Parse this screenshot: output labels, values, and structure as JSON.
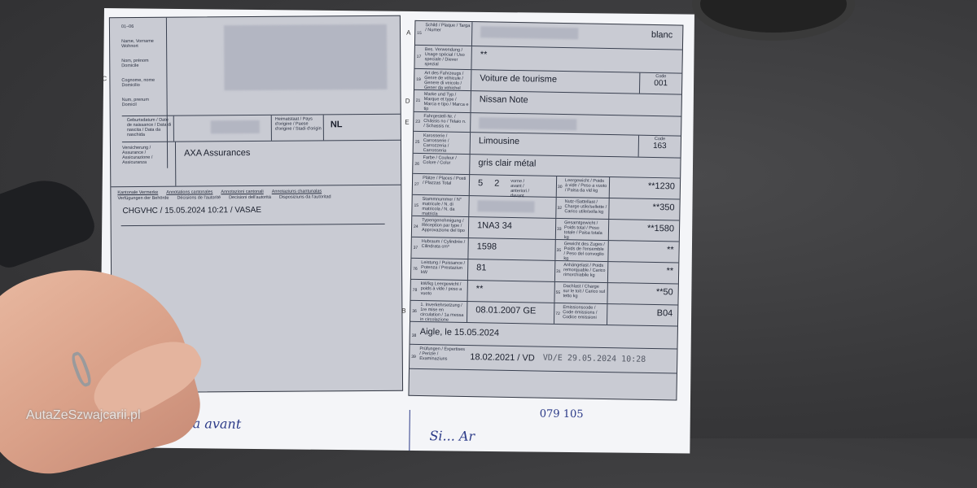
{
  "watermark": "AutaZeSzwajcarii.pl",
  "left": {
    "section_c": "C",
    "field_01": "01–06",
    "holder_labels": [
      "Name, Vorname Wohnort",
      "Nom, prénom Domicile",
      "Cognome, nome Domicilio",
      "Num, prenum Domicil"
    ],
    "field_07_label": "Geburtsdatum / Date de naissance / Data di nascita / Data da naschida",
    "field_08_label": "Heimatstaat / Pays d'origine / Paese d'origine / Stadi d'origin",
    "origin": "NL",
    "field_09_label": "Versicherung / Assurance / Assicurazione / Assicuranza",
    "insurance": "AXA Assurances",
    "field_13_labels": [
      "Kantonale Vermerke",
      "Annotations cantonales",
      "Annotazioni cantonali",
      "Annotaziuns chantunalas"
    ],
    "field_14_labels": [
      "Verfügungen der Behörde",
      "Décisions de l'autorité",
      "Decisioni dell'autorità",
      "Disposiziuns da l'autoritad"
    ],
    "annotation": "CHGVHC / 15.05.2024 10:21 / VASAE"
  },
  "right": {
    "rows": [
      {
        "side": "A",
        "num": "15",
        "label": "Schild / Plaque / Targa / Numer",
        "value": "",
        "extra": "blanc"
      },
      {
        "num": "17",
        "label": "Bes. Verwendung / Usage spécial / Uso speciale / Diever spezial",
        "value": "**"
      },
      {
        "num": "19",
        "label": "Art des Fahrzeugs / Genre de véhicule / Genere di veicolo / Gener da vehichel",
        "value": "Voiture de tourisme",
        "code_label": "Code",
        "code": "001"
      },
      {
        "side": "D",
        "num": "21",
        "label": "Marke und Typ / Marque et type / Marca e tipo / Marca e tip",
        "value": "Nissan Note"
      },
      {
        "side": "E",
        "num": "23",
        "label": "Fahrgestell-Nr. / Châssis no / Telaio n. / Schassis nr.",
        "value": ""
      },
      {
        "num": "25",
        "label": "Karosserie / Carrosserie / Carrozzeria / Carrosseria",
        "value": "Limousine",
        "code_label": "Code",
        "code": "163"
      },
      {
        "num": "26",
        "label": "Farbe / Couleur / Colore / Colur",
        "value": "gris clair métal"
      }
    ],
    "rows2": [
      {
        "num": "27",
        "label": "Plätze / Places / Posti / Plazzas  Total",
        "value": "5",
        "value2": "2",
        "sub": "vorne / avant / anteriori / davant",
        "num2": "30",
        "label2": "Leergewicht / Poids à vide / Peso a vuoto / Paisa da vid  kg",
        "value3": "**1230"
      },
      {
        "num": "15",
        "label": "Stammnummer / N° matricule / N. di matricola / N. da matricla",
        "value": "",
        "num2": "32",
        "label2": "Nutz-/Sattellast / Charge utile/sellette / Carico utile/sella  kg",
        "value3": "**350"
      },
      {
        "num": "24",
        "label": "Typengenehmigung / Réception par type / Approvazione del tipo",
        "value": "1NA3 34",
        "num2": "33",
        "label2": "Gesamtgewicht / Poids total / Peso totale / Paisa totala  kg",
        "value3": "**1580"
      },
      {
        "num": "37",
        "label": "Hubraum / Cylindrée / Cilindrata  cm³",
        "value": "1598",
        "num2": "35",
        "label2": "Gewicht des Zuges / Poids de l'ensemble / Peso del convoglio  kg",
        "value3": "**"
      },
      {
        "num": "76",
        "label": "Leistung / Puissance / Potenza / Prestaziun  kW",
        "value": "81",
        "num2": "31",
        "label2": "Anhängelast / Poids remorquable / Carico rimorchiabile  kg",
        "value3": "**"
      },
      {
        "num": "78",
        "label": "kW/kg  Leergewicht / poids à vide / peso a vuoto",
        "value": "**",
        "num2": "55",
        "label2": "Dachlast / Charge sur le toit / Carico sul tetto  kg",
        "value3": "**50"
      },
      {
        "side": "B",
        "num": "36",
        "label": "1. Inverkehrsetzung / 1re mise en circulation / 1a messa in circolazione",
        "value": "08.01.2007 GE",
        "num2": "72",
        "label2": "Emissionscode / Code émissions / Codice emissioni",
        "value3": "B04"
      }
    ],
    "place_date": "Aigle, le 15.05.2024",
    "num_38": "38",
    "num_39": "39",
    "exam_label": "Prüfungen / Expertises / Perizie / Examinaziuns",
    "exam": "18.02.2021 / VD",
    "stamp": "VD/E 29.05.2024 10:28"
  },
  "handwriting": {
    "left": "cla avant",
    "right": "Si... Ar",
    "number": "079 105"
  }
}
